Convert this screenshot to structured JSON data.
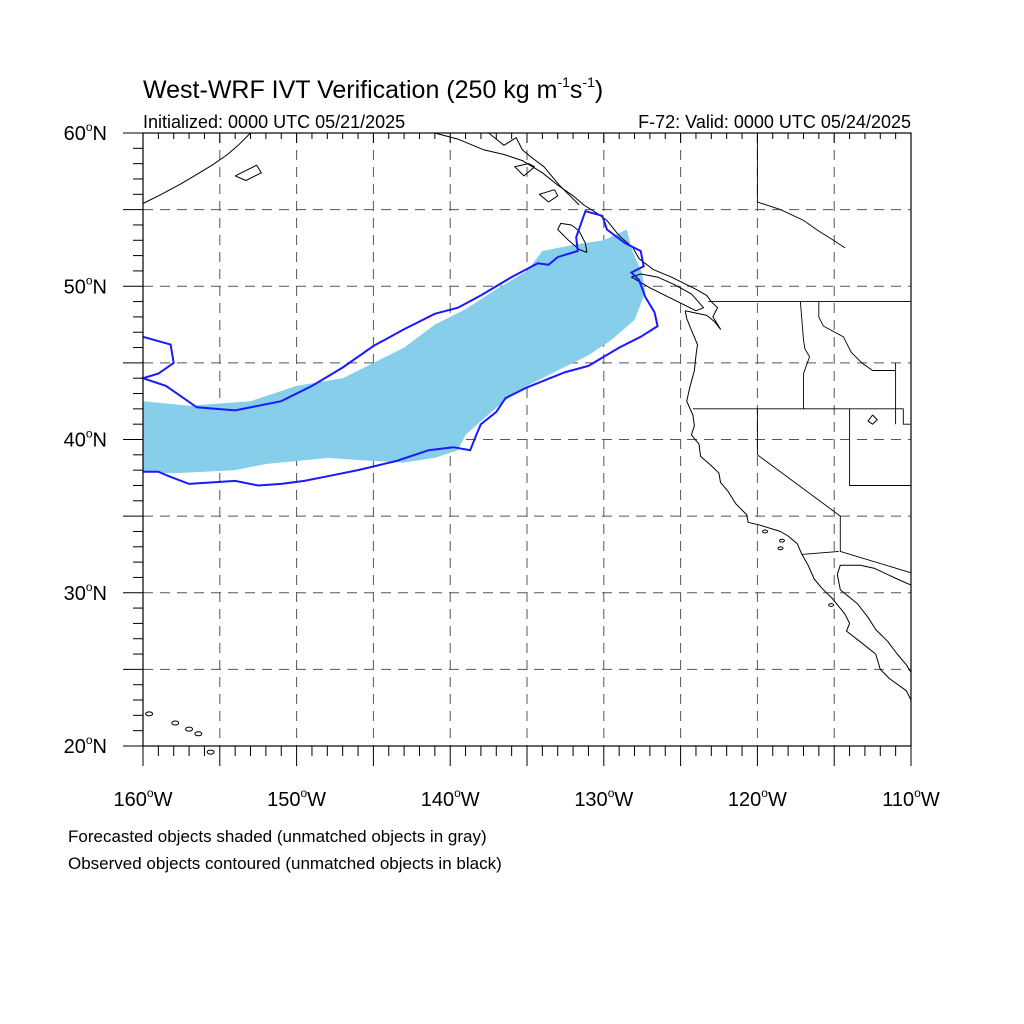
{
  "title": {
    "main": "West-WRF IVT Verification (250 kg m",
    "exp1": "-1",
    "mid": "s",
    "exp2": "-1",
    "close": ")"
  },
  "initialized": "Initialized: 0000 UTC 05/21/2025",
  "valid": "F-72: Valid: 0000 UTC 05/24/2025",
  "map": {
    "projection": "cylindrical-equidistant",
    "lon_range": [
      -160,
      -110
    ],
    "lat_range": [
      20,
      60
    ],
    "grid_lon_step": 5,
    "grid_lat_step": 5,
    "lat_labels": [
      {
        "lat": 60,
        "text": "60",
        "suffix": "N"
      },
      {
        "lat": 50,
        "text": "50",
        "suffix": "N"
      },
      {
        "lat": 40,
        "text": "40",
        "suffix": "N"
      },
      {
        "lat": 30,
        "text": "30",
        "suffix": "N"
      },
      {
        "lat": 20,
        "text": "20",
        "suffix": "N"
      }
    ],
    "lon_labels": [
      {
        "lon": -160,
        "text": "160",
        "suffix": "W"
      },
      {
        "lon": -150,
        "text": "150",
        "suffix": "W"
      },
      {
        "lon": -140,
        "text": "140",
        "suffix": "W"
      },
      {
        "lon": -130,
        "text": "130",
        "suffix": "W"
      },
      {
        "lon": -120,
        "text": "120",
        "suffix": "W"
      },
      {
        "lon": -110,
        "text": "110",
        "suffix": "W"
      }
    ],
    "colors": {
      "forecast_fill": "#87ceeb",
      "observed_contour": "#1a1aff",
      "coast": "#000000",
      "grid": "#555555"
    },
    "forecast_object": [
      [
        -160,
        42.5
      ],
      [
        -157,
        42.2
      ],
      [
        -153,
        42.5
      ],
      [
        -150,
        43.5
      ],
      [
        -147,
        44
      ],
      [
        -145,
        45
      ],
      [
        -143,
        46
      ],
      [
        -141,
        47.5
      ],
      [
        -139,
        48.5
      ],
      [
        -137,
        49.8
      ],
      [
        -135,
        51
      ],
      [
        -134,
        52.3
      ],
      [
        -132,
        52.7
      ],
      [
        -130,
        53
      ],
      [
        -128.5,
        53.7
      ],
      [
        -128.2,
        52.5
      ],
      [
        -127.5,
        50.8
      ],
      [
        -127.3,
        49.6
      ],
      [
        -128,
        47.8
      ],
      [
        -129.5,
        46.5
      ],
      [
        -131,
        45.5
      ],
      [
        -133,
        44.5
      ],
      [
        -135,
        43.5
      ],
      [
        -136.5,
        42.5
      ],
      [
        -138,
        41.2
      ],
      [
        -139,
        40.3
      ],
      [
        -139.5,
        39.3
      ],
      [
        -141,
        38.8
      ],
      [
        -143,
        38.5
      ],
      [
        -145,
        38.6
      ],
      [
        -148,
        38.8
      ],
      [
        -150,
        38.6
      ],
      [
        -152,
        38.4
      ],
      [
        -154,
        38.0
      ],
      [
        -156,
        37.9
      ],
      [
        -158,
        37.8
      ],
      [
        -160,
        37.9
      ]
    ],
    "observed_object": [
      [
        -160,
        46.7
      ],
      [
        -158.2,
        46.2
      ],
      [
        -158,
        45
      ],
      [
        -159,
        44.3
      ],
      [
        -160,
        44
      ],
      [
        -158.5,
        43.5
      ],
      [
        -156.5,
        42.1
      ],
      [
        -154,
        41.9
      ],
      [
        -151,
        42.5
      ],
      [
        -149,
        43.5
      ],
      [
        -147,
        44.7
      ],
      [
        -145,
        46.1
      ],
      [
        -143,
        47.2
      ],
      [
        -141,
        48.2
      ],
      [
        -139.5,
        48.6
      ],
      [
        -138,
        49.4
      ],
      [
        -136,
        50.6
      ],
      [
        -134.3,
        51.5
      ],
      [
        -133.6,
        51.4
      ],
      [
        -133,
        51.9
      ],
      [
        -131.7,
        52.3
      ],
      [
        -131.8,
        53.2
      ],
      [
        -131.2,
        54.9
      ],
      [
        -130.1,
        54.6
      ],
      [
        -129.8,
        53.7
      ],
      [
        -128.6,
        52.8
      ],
      [
        -127.6,
        52.3
      ],
      [
        -127.4,
        51.3
      ],
      [
        -128.2,
        50.9
      ],
      [
        -127.7,
        50.4
      ],
      [
        -127.3,
        49.3
      ],
      [
        -126.7,
        48.3
      ],
      [
        -126.5,
        47.4
      ],
      [
        -127.6,
        46.7
      ],
      [
        -129,
        46
      ],
      [
        -131,
        44.8
      ],
      [
        -132.5,
        44.4
      ],
      [
        -133.5,
        44
      ],
      [
        -135,
        43.4
      ],
      [
        -136.4,
        42.7
      ],
      [
        -137,
        41.8
      ],
      [
        -138,
        41.0
      ],
      [
        -138.3,
        40.3
      ],
      [
        -138.7,
        39.3
      ],
      [
        -139.8,
        39.5
      ],
      [
        -141.4,
        39.3
      ],
      [
        -143.5,
        38.6
      ],
      [
        -146,
        38
      ],
      [
        -148,
        37.6
      ],
      [
        -149.5,
        37.3
      ],
      [
        -151,
        37.1
      ],
      [
        -152.5,
        37
      ],
      [
        -154,
        37.3
      ],
      [
        -155.5,
        37.2
      ],
      [
        -157,
        37.1
      ],
      [
        -158.3,
        37.6
      ],
      [
        -159,
        37.9
      ],
      [
        -160,
        37.9
      ]
    ]
  },
  "footnote": {
    "line1": "Forecasted objects shaded (unmatched objects in gray)",
    "line2": "Observed objects contoured (unmatched objects in black)"
  }
}
